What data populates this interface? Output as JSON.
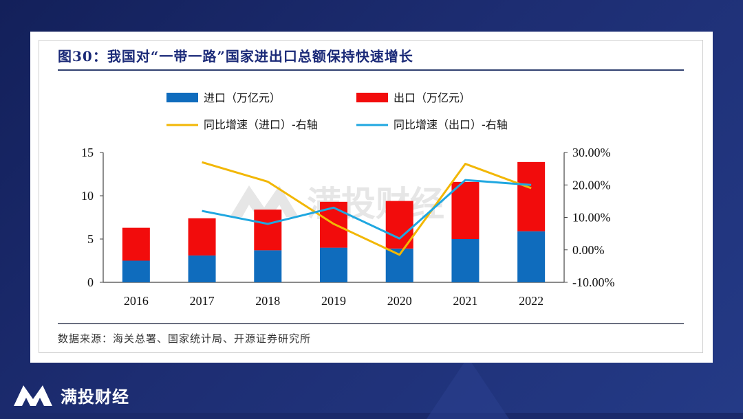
{
  "title": "图30：我国对“一带一路”国家进出口总额保持快速增长",
  "source": "数据来源：海关总署、国家统计局、开源证券研究所",
  "watermark": "满投财经",
  "brand": {
    "name": "满投财经",
    "logo_icon": "mt-logo-icon"
  },
  "colors": {
    "import": "#0f6cbd",
    "export": "#f20c0c",
    "import_growth": "#f2b705",
    "export_growth": "#1fa7e0",
    "axis": "#444444"
  },
  "chart_data": {
    "type": "bar",
    "stacked": true,
    "categories": [
      "2016",
      "2017",
      "2018",
      "2019",
      "2020",
      "2021",
      "2022"
    ],
    "series": [
      {
        "name": "进口（万亿元）",
        "kind": "bar",
        "axis": "left",
        "values": [
          2.5,
          3.1,
          3.7,
          4.0,
          3.9,
          5.0,
          5.9
        ]
      },
      {
        "name": "出口（万亿元）",
        "kind": "bar",
        "axis": "left",
        "values": [
          3.8,
          4.3,
          4.7,
          5.3,
          5.5,
          6.6,
          8.0
        ]
      },
      {
        "name": "同比增速（进口）-右轴",
        "kind": "line",
        "axis": "right",
        "values": [
          null,
          27.0,
          21.0,
          8.0,
          -1.5,
          26.5,
          19.0
        ]
      },
      {
        "name": "同比增速（出口）-右轴",
        "kind": "line",
        "axis": "right",
        "values": [
          null,
          12.0,
          8.0,
          13.0,
          3.5,
          21.5,
          20.0
        ]
      }
    ],
    "left_axis": {
      "ylim": [
        0,
        15
      ],
      "ticks": [
        "0",
        "5",
        "10",
        "15"
      ]
    },
    "right_axis": {
      "ylim": [
        -10,
        30
      ],
      "ticks": [
        "-10.00%",
        "0.00%",
        "10.00%",
        "20.00%",
        "30.00%"
      ]
    },
    "legend_placement": "top",
    "grid": false
  }
}
